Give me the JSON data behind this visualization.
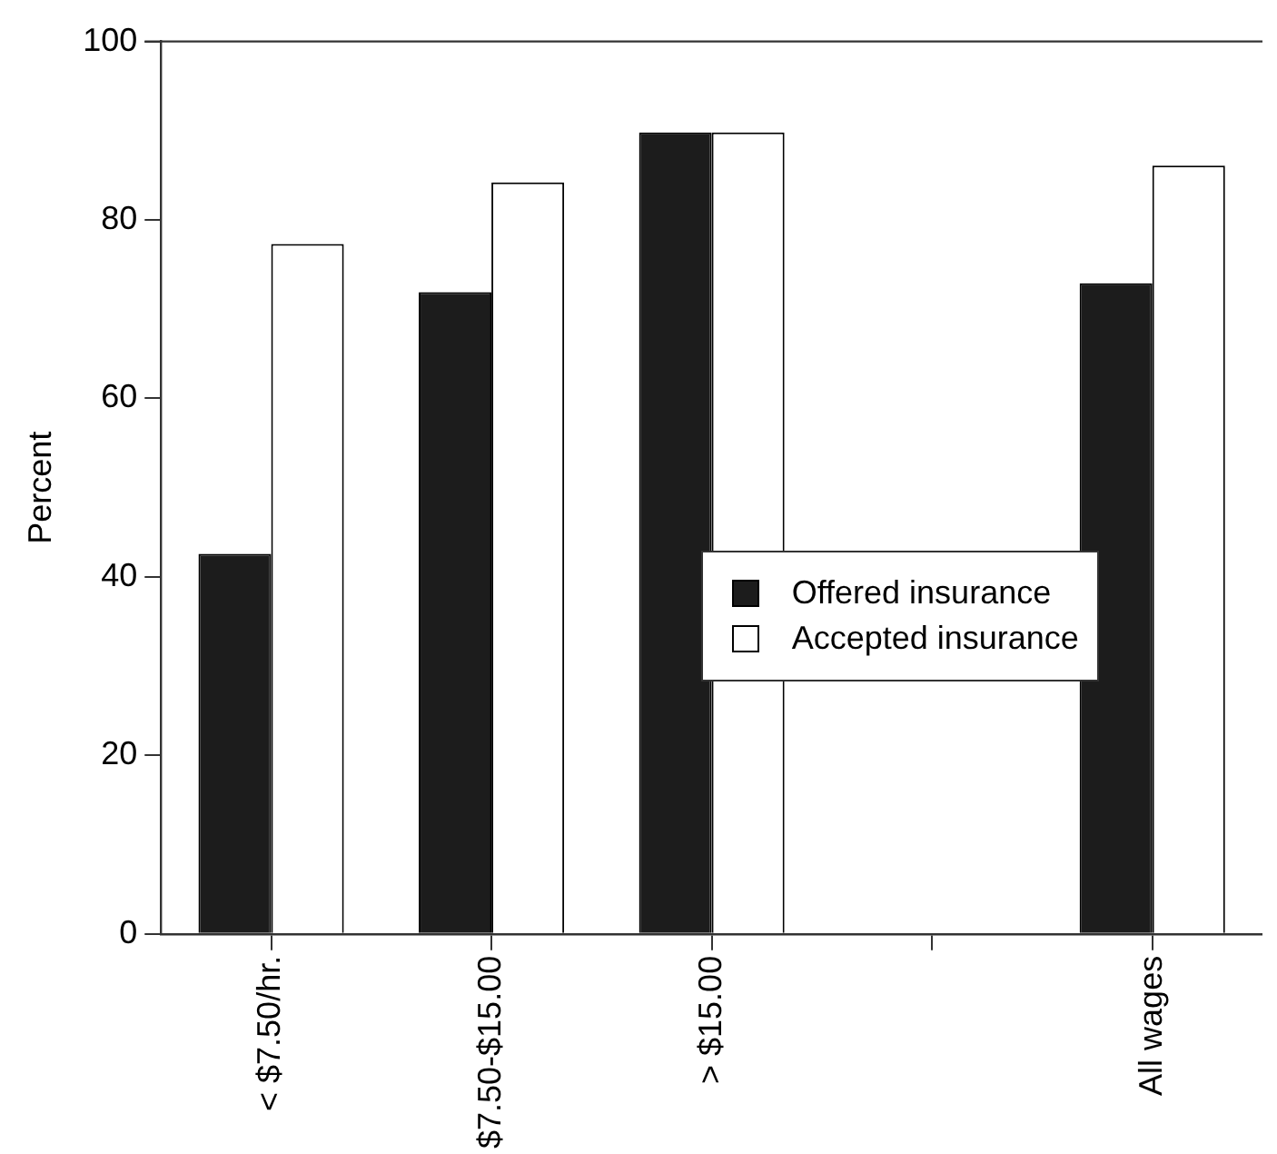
{
  "chart_data": {
    "type": "bar",
    "ylabel": "Percent",
    "categories": [
      "< $7.50/hr.",
      "$7.50-$15.00",
      "> $15.00",
      null,
      "All wages"
    ],
    "series": [
      {
        "name": "Offered insurance",
        "color": "#1c1c1c",
        "values": [
          42.6,
          71.9,
          89.8,
          0,
          72.9
        ]
      },
      {
        "name": "Accepted insurance",
        "color": "#ffffff",
        "values": [
          77.3,
          84.2,
          89.8,
          0,
          86.1
        ]
      }
    ],
    "ylim": [
      0,
      100
    ],
    "yticks": [
      0,
      20,
      40,
      60,
      80,
      100
    ],
    "grid": false,
    "legend": "center"
  }
}
